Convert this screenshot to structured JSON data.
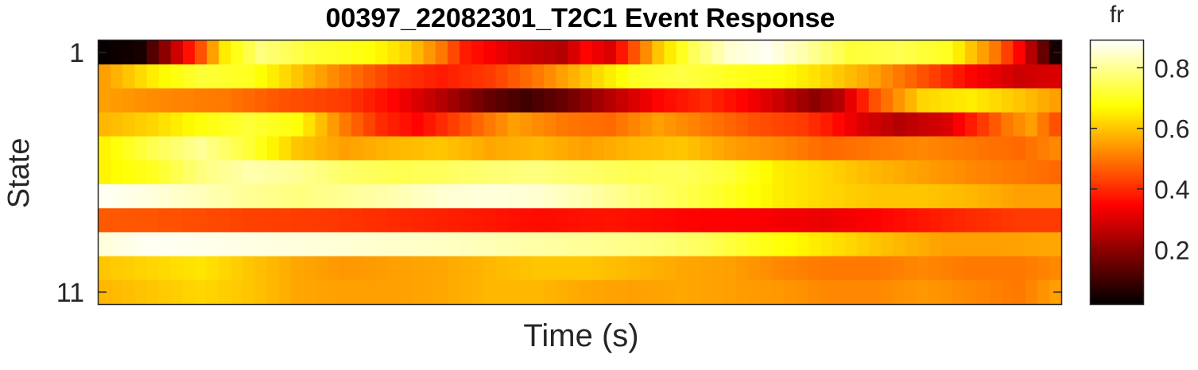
{
  "chart_data": {
    "type": "heatmap",
    "title": "00397_22082301_T2C1 Event Response",
    "xlabel": "Time (s)",
    "ylabel": "State",
    "colorbar_label": "fr",
    "colormap": "hot",
    "clim": [
      0.02,
      0.89
    ],
    "colorbar_ticks": [
      0.2,
      0.4,
      0.6,
      0.8
    ],
    "colorbar_ticklabels": [
      "0.2",
      "0.4",
      "0.6",
      "0.8"
    ],
    "y_ticks": [
      1,
      11
    ],
    "y_ticklabels": [
      "1",
      "11"
    ],
    "rows": 11,
    "cols": 80,
    "profiles": [
      [
        [
          0,
          0.03
        ],
        [
          3,
          0.05
        ],
        [
          5,
          0.2
        ],
        [
          8,
          0.45
        ],
        [
          10,
          0.65
        ],
        [
          13,
          0.78
        ],
        [
          17,
          0.72
        ],
        [
          22,
          0.68
        ],
        [
          25,
          0.62
        ],
        [
          28,
          0.5
        ],
        [
          30,
          0.38
        ],
        [
          34,
          0.3
        ],
        [
          38,
          0.25
        ],
        [
          40,
          0.35
        ],
        [
          42,
          0.3
        ],
        [
          44,
          0.45
        ],
        [
          46,
          0.6
        ],
        [
          49,
          0.75
        ],
        [
          52,
          0.85
        ],
        [
          55,
          0.88
        ],
        [
          58,
          0.82
        ],
        [
          62,
          0.72
        ],
        [
          66,
          0.74
        ],
        [
          70,
          0.7
        ],
        [
          72,
          0.6
        ],
        [
          74,
          0.5
        ],
        [
          76,
          0.35
        ],
        [
          78,
          0.15
        ],
        [
          79,
          0.05
        ]
      ],
      [
        [
          0,
          0.55
        ],
        [
          4,
          0.65
        ],
        [
          8,
          0.72
        ],
        [
          12,
          0.7
        ],
        [
          16,
          0.6
        ],
        [
          20,
          0.5
        ],
        [
          24,
          0.42
        ],
        [
          28,
          0.38
        ],
        [
          32,
          0.42
        ],
        [
          36,
          0.5
        ],
        [
          40,
          0.6
        ],
        [
          44,
          0.7
        ],
        [
          48,
          0.73
        ],
        [
          52,
          0.7
        ],
        [
          56,
          0.68
        ],
        [
          60,
          0.62
        ],
        [
          64,
          0.55
        ],
        [
          68,
          0.45
        ],
        [
          72,
          0.35
        ],
        [
          76,
          0.28
        ],
        [
          79,
          0.3
        ]
      ],
      [
        [
          0,
          0.55
        ],
        [
          5,
          0.52
        ],
        [
          10,
          0.5
        ],
        [
          15,
          0.45
        ],
        [
          20,
          0.42
        ],
        [
          24,
          0.35
        ],
        [
          28,
          0.25
        ],
        [
          32,
          0.15
        ],
        [
          35,
          0.1
        ],
        [
          38,
          0.15
        ],
        [
          42,
          0.25
        ],
        [
          46,
          0.35
        ],
        [
          50,
          0.4
        ],
        [
          53,
          0.35
        ],
        [
          56,
          0.28
        ],
        [
          59,
          0.2
        ],
        [
          61,
          0.25
        ],
        [
          64,
          0.45
        ],
        [
          68,
          0.62
        ],
        [
          72,
          0.65
        ],
        [
          76,
          0.6
        ],
        [
          79,
          0.55
        ]
      ],
      [
        [
          0,
          0.58
        ],
        [
          4,
          0.62
        ],
        [
          8,
          0.68
        ],
        [
          12,
          0.72
        ],
        [
          16,
          0.68
        ],
        [
          20,
          0.5
        ],
        [
          23,
          0.4
        ],
        [
          26,
          0.35
        ],
        [
          30,
          0.45
        ],
        [
          34,
          0.55
        ],
        [
          38,
          0.5
        ],
        [
          42,
          0.48
        ],
        [
          46,
          0.55
        ],
        [
          50,
          0.5
        ],
        [
          54,
          0.45
        ],
        [
          58,
          0.42
        ],
        [
          60,
          0.38
        ],
        [
          63,
          0.3
        ],
        [
          66,
          0.25
        ],
        [
          70,
          0.3
        ],
        [
          72,
          0.38
        ],
        [
          75,
          0.5
        ],
        [
          77,
          0.55
        ],
        [
          79,
          0.45
        ]
      ],
      [
        [
          0,
          0.66
        ],
        [
          4,
          0.74
        ],
        [
          8,
          0.8
        ],
        [
          12,
          0.72
        ],
        [
          16,
          0.6
        ],
        [
          20,
          0.55
        ],
        [
          24,
          0.58
        ],
        [
          28,
          0.6
        ],
        [
          32,
          0.56
        ],
        [
          36,
          0.58
        ],
        [
          40,
          0.55
        ],
        [
          44,
          0.58
        ],
        [
          48,
          0.6
        ],
        [
          52,
          0.55
        ],
        [
          56,
          0.52
        ],
        [
          60,
          0.48
        ],
        [
          64,
          0.5
        ],
        [
          68,
          0.52
        ],
        [
          72,
          0.5
        ],
        [
          76,
          0.48
        ],
        [
          79,
          0.52
        ]
      ],
      [
        [
          0,
          0.66
        ],
        [
          4,
          0.7
        ],
        [
          8,
          0.78
        ],
        [
          12,
          0.82
        ],
        [
          16,
          0.8
        ],
        [
          20,
          0.76
        ],
        [
          24,
          0.74
        ],
        [
          28,
          0.75
        ],
        [
          32,
          0.77
        ],
        [
          36,
          0.78
        ],
        [
          40,
          0.76
        ],
        [
          44,
          0.74
        ],
        [
          48,
          0.75
        ],
        [
          52,
          0.72
        ],
        [
          56,
          0.65
        ],
        [
          60,
          0.62
        ],
        [
          64,
          0.58
        ],
        [
          68,
          0.55
        ],
        [
          72,
          0.52
        ],
        [
          76,
          0.5
        ],
        [
          79,
          0.48
        ]
      ],
      [
        [
          0,
          0.88
        ],
        [
          4,
          0.86
        ],
        [
          8,
          0.83
        ],
        [
          12,
          0.8
        ],
        [
          16,
          0.78
        ],
        [
          20,
          0.8
        ],
        [
          24,
          0.82
        ],
        [
          28,
          0.85
        ],
        [
          32,
          0.86
        ],
        [
          36,
          0.85
        ],
        [
          40,
          0.82
        ],
        [
          44,
          0.78
        ],
        [
          48,
          0.74
        ],
        [
          52,
          0.7
        ],
        [
          56,
          0.65
        ],
        [
          60,
          0.62
        ],
        [
          64,
          0.6
        ],
        [
          68,
          0.6
        ],
        [
          72,
          0.58
        ],
        [
          76,
          0.55
        ],
        [
          79,
          0.55
        ]
      ],
      [
        [
          0,
          0.46
        ],
        [
          6,
          0.45
        ],
        [
          12,
          0.43
        ],
        [
          18,
          0.42
        ],
        [
          24,
          0.4
        ],
        [
          30,
          0.38
        ],
        [
          36,
          0.36
        ],
        [
          42,
          0.37
        ],
        [
          48,
          0.35
        ],
        [
          54,
          0.34
        ],
        [
          60,
          0.32
        ],
        [
          66,
          0.36
        ],
        [
          72,
          0.4
        ],
        [
          76,
          0.42
        ],
        [
          79,
          0.42
        ]
      ],
      [
        [
          0,
          0.86
        ],
        [
          4,
          0.88
        ],
        [
          10,
          0.87
        ],
        [
          16,
          0.86
        ],
        [
          22,
          0.85
        ],
        [
          28,
          0.84
        ],
        [
          34,
          0.82
        ],
        [
          40,
          0.8
        ],
        [
          46,
          0.78
        ],
        [
          50,
          0.75
        ],
        [
          54,
          0.7
        ],
        [
          58,
          0.66
        ],
        [
          62,
          0.62
        ],
        [
          66,
          0.58
        ],
        [
          70,
          0.55
        ],
        [
          74,
          0.55
        ],
        [
          79,
          0.56
        ]
      ],
      [
        [
          0,
          0.6
        ],
        [
          4,
          0.62
        ],
        [
          8,
          0.64
        ],
        [
          12,
          0.6
        ],
        [
          16,
          0.56
        ],
        [
          20,
          0.54
        ],
        [
          24,
          0.55
        ],
        [
          28,
          0.56
        ],
        [
          32,
          0.58
        ],
        [
          36,
          0.6
        ],
        [
          40,
          0.6
        ],
        [
          44,
          0.58
        ],
        [
          48,
          0.56
        ],
        [
          52,
          0.55
        ],
        [
          56,
          0.52
        ],
        [
          60,
          0.5
        ],
        [
          64,
          0.5
        ],
        [
          68,
          0.52
        ],
        [
          72,
          0.5
        ],
        [
          76,
          0.5
        ],
        [
          79,
          0.52
        ]
      ],
      [
        [
          0,
          0.58
        ],
        [
          4,
          0.6
        ],
        [
          8,
          0.62
        ],
        [
          12,
          0.6
        ],
        [
          16,
          0.56
        ],
        [
          20,
          0.55
        ],
        [
          24,
          0.55
        ],
        [
          28,
          0.56
        ],
        [
          32,
          0.58
        ],
        [
          36,
          0.58
        ],
        [
          40,
          0.56
        ],
        [
          44,
          0.55
        ],
        [
          48,
          0.56
        ],
        [
          52,
          0.55
        ],
        [
          56,
          0.54
        ],
        [
          60,
          0.52
        ],
        [
          64,
          0.52
        ],
        [
          68,
          0.54
        ],
        [
          72,
          0.52
        ],
        [
          76,
          0.5
        ],
        [
          79,
          0.55
        ]
      ]
    ],
    "grid": false,
    "legend": "none"
  }
}
